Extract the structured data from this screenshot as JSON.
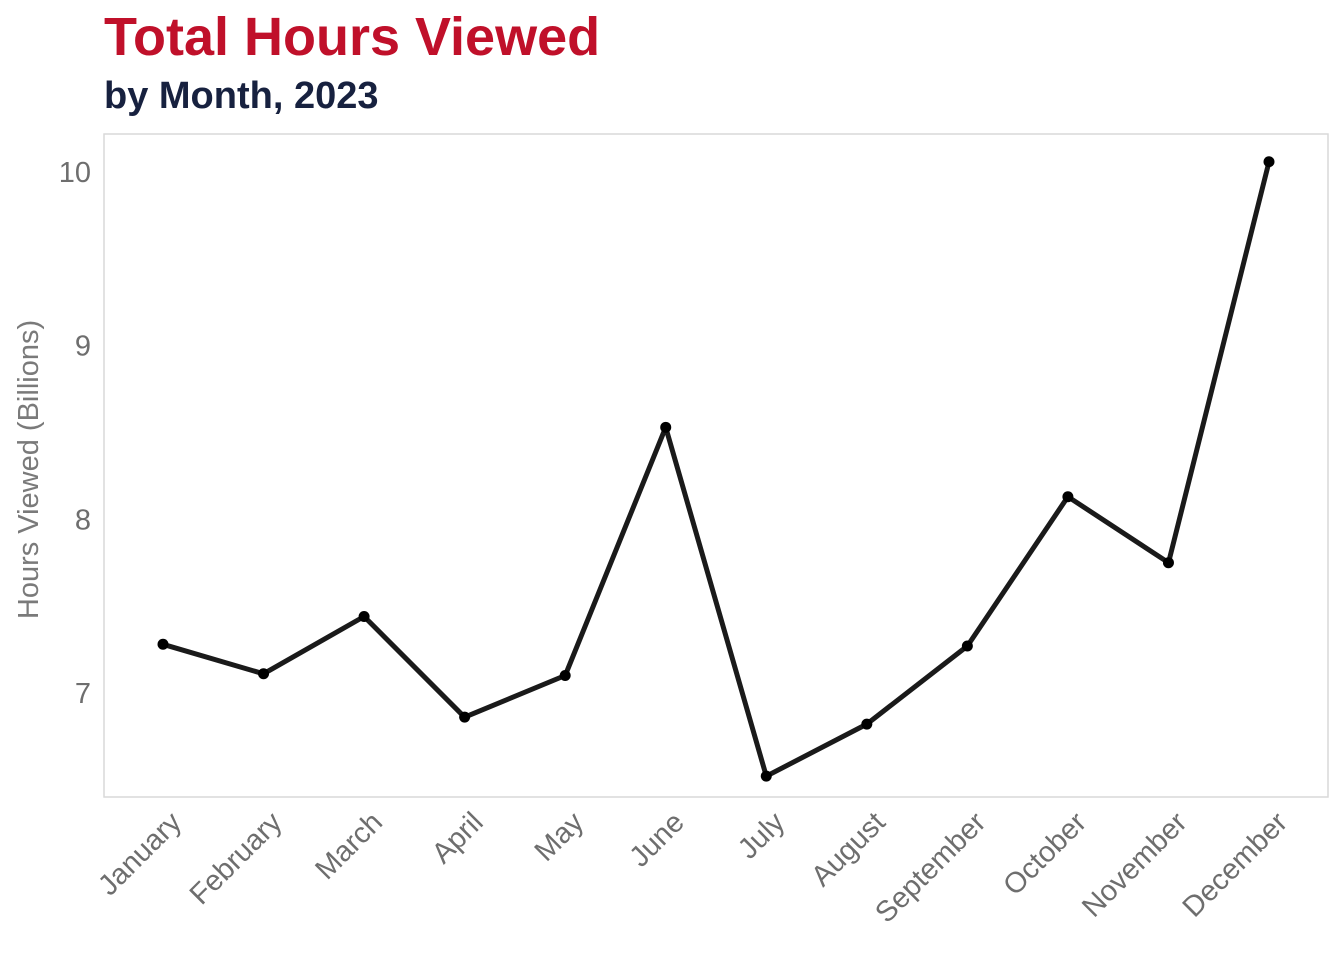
{
  "colors": {
    "title": "#c0102a",
    "subtitle": "#17213f",
    "line": "#1a1a1a",
    "point": "#000000",
    "panel_border": "#d9d9d9"
  },
  "chart_data": {
    "type": "line",
    "title": "Total Hours Viewed",
    "subtitle": "by Month, 2023",
    "xlabel": "",
    "ylabel": "Hours Viewed (Billions)",
    "categories": [
      "January",
      "February",
      "March",
      "April",
      "May",
      "June",
      "July",
      "August",
      "September",
      "October",
      "November",
      "December"
    ],
    "series": [
      {
        "values": [
          7.28,
          7.11,
          7.44,
          6.86,
          7.1,
          8.53,
          6.52,
          6.82,
          7.27,
          8.13,
          7.75,
          10.06
        ]
      }
    ],
    "ylim": [
      6.4,
      10.22
    ],
    "yticks": [
      7,
      8,
      9,
      10
    ],
    "ytick_labels": [
      "7",
      "8",
      "9",
      "10"
    ],
    "grid": false,
    "legend": "none",
    "markers": true
  }
}
